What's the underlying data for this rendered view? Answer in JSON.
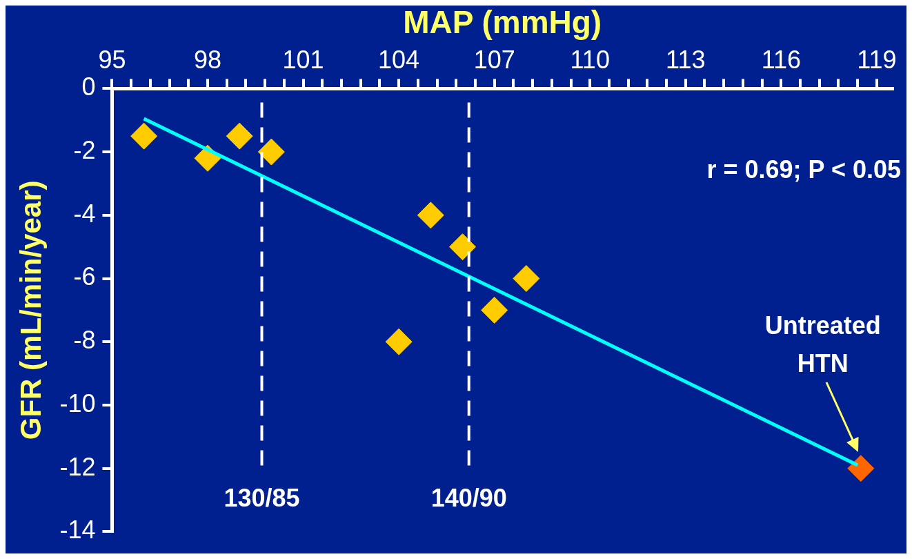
{
  "chart_data": {
    "type": "scatter",
    "xlabel": "MAP (mmHg)",
    "ylabel": "GFR (mL/min/year)",
    "xlim": [
      95,
      119.5
    ],
    "ylim": [
      -14,
      0
    ],
    "xticks": [
      95,
      {
        "value": 95.6,
        "label": null
      },
      {
        "value": 96.2,
        "label": null
      },
      {
        "value": 96.8,
        "label": null
      },
      {
        "value": 97.4,
        "label": null
      },
      98,
      {
        "value": 98.6,
        "label": null
      },
      {
        "value": 99.2,
        "label": null
      },
      {
        "value": 99.8,
        "label": null
      },
      {
        "value": 100.4,
        "label": null
      },
      101,
      {
        "value": 101.6,
        "label": null
      },
      {
        "value": 102.2,
        "label": null
      },
      {
        "value": 102.8,
        "label": null
      },
      {
        "value": 103.4,
        "label": null
      },
      104,
      {
        "value": 104.6,
        "label": null
      },
      {
        "value": 105.2,
        "label": null
      },
      {
        "value": 105.8,
        "label": null
      },
      {
        "value": 106.4,
        "label": null
      },
      107,
      {
        "value": 107.6,
        "label": null
      },
      {
        "value": 108.2,
        "label": null
      },
      {
        "value": 108.8,
        "label": null
      },
      {
        "value": 109.4,
        "label": null
      },
      110,
      {
        "value": 110.6,
        "label": null
      },
      {
        "value": 111.2,
        "label": null
      },
      {
        "value": 111.8,
        "label": null
      },
      {
        "value": 112.4,
        "label": null
      },
      113,
      {
        "value": 113.6,
        "label": null
      },
      {
        "value": 114.2,
        "label": null
      },
      {
        "value": 114.8,
        "label": null
      },
      {
        "value": 115.4,
        "label": null
      },
      116,
      {
        "value": 116.6,
        "label": null
      },
      {
        "value": 117.2,
        "label": null
      },
      {
        "value": 117.8,
        "label": null
      },
      {
        "value": 118.4,
        "label": null
      },
      119
    ],
    "yticks": [
      0,
      -2,
      -4,
      -6,
      -8,
      -10,
      -12,
      -14
    ],
    "grid": false,
    "legend": false,
    "marker": "diamond",
    "series": [
      {
        "color": "#ffcc00",
        "x": [
          96,
          98,
          99,
          100,
          104,
          105,
          106,
          107,
          108
        ],
        "values": [
          -1.5,
          -2.2,
          -1.5,
          -2,
          -8,
          -4,
          -5,
          -7,
          -6
        ]
      },
      {
        "color": "#ff6600",
        "x": [
          118.5
        ],
        "values": [
          -12
        ]
      },
      {
        "type": "line",
        "marker": "none",
        "color": "#00ffff",
        "x": [
          96,
          118.4
        ],
        "values": [
          -0.95,
          -11.9
        ]
      }
    ],
    "ref_lines": [
      {
        "axis": "x",
        "value": 99.7,
        "color": "#ffffff",
        "line_style": "dashed"
      },
      {
        "axis": "x",
        "value": 106.2,
        "color": "#ffffff",
        "line_style": "dashed"
      }
    ],
    "annotations": [
      "r = 0.69; P < 0.05",
      "130/85",
      "140/90",
      "Untreated\nHTN"
    ]
  }
}
